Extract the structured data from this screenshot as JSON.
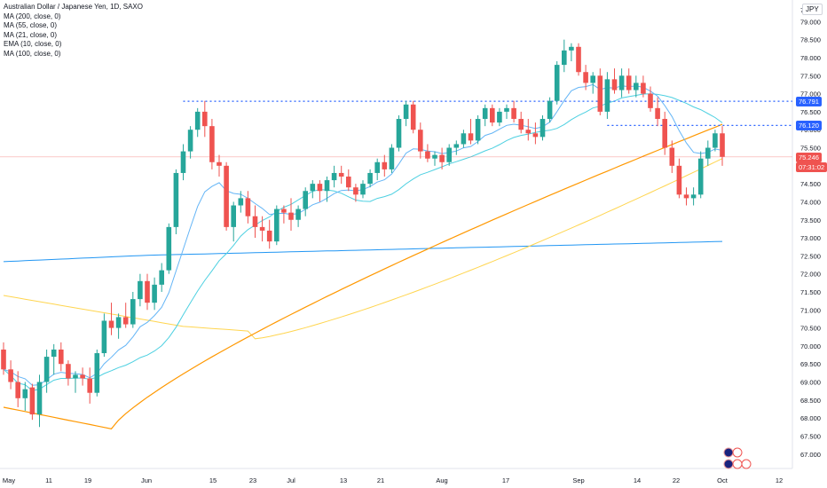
{
  "title": "Australian Dollar / Japanese Yen, 1D, SAXO",
  "indicators": [
    {
      "label": "MA (200, close, 0)",
      "color": "#2196f3"
    },
    {
      "label": "MA (55, close, 0)",
      "color": "#ff9800"
    },
    {
      "label": "MA (21, close, 0)",
      "color": "#ffd54f"
    },
    {
      "label": "EMA (10, close, 0)",
      "color": "#4dd0e1"
    },
    {
      "label": "MA (100, close, 0)",
      "color": "#64b5f6"
    }
  ],
  "currency": "JPY",
  "price_labels": {
    "resistance_1": "76.791",
    "resistance_2": "76.120",
    "last_price": "75.246",
    "countdown": "07:31:02"
  },
  "colors": {
    "up": "#26a69a",
    "down": "#ef5350",
    "level": "#2962ff"
  },
  "chart_data": {
    "type": "candlestick",
    "yaxis_ticks": [
      "67.000",
      "67.500",
      "68.000",
      "68.500",
      "69.000",
      "69.500",
      "70.000",
      "70.500",
      "71.000",
      "71.500",
      "72.000",
      "72.500",
      "73.000",
      "73.500",
      "74.000",
      "74.500",
      "75.000",
      "75.500",
      "76.000",
      "76.500",
      "77.000",
      "77.500",
      "78.000",
      "78.500",
      "79.000"
    ],
    "yaxis_top_partial": "7",
    "xaxis_ticks": [
      "May",
      "11",
      "19",
      "Jun",
      "15",
      "23",
      "Jul",
      "13",
      "21",
      "Aug",
      "17",
      "Sep",
      "14",
      "22",
      "Oct",
      "12"
    ],
    "ylim": [
      66.6,
      79.6
    ],
    "horizontal_levels": [
      76.791,
      76.12
    ],
    "last_price": 75.246,
    "candles": [
      [
        0,
        69.9,
        70.1,
        69.2,
        69.35
      ],
      [
        1,
        69.35,
        69.6,
        68.8,
        69.0
      ],
      [
        2,
        69.0,
        69.3,
        68.3,
        68.55
      ],
      [
        3,
        68.55,
        69.0,
        68.2,
        68.8
      ],
      [
        4,
        68.85,
        68.95,
        67.95,
        68.1
      ],
      [
        5,
        68.1,
        69.2,
        67.75,
        69.0
      ],
      [
        6,
        69.0,
        69.9,
        68.7,
        69.7
      ],
      [
        7,
        69.7,
        70.05,
        69.2,
        69.9
      ],
      [
        8,
        69.9,
        70.1,
        69.3,
        69.5
      ],
      [
        9,
        69.5,
        69.6,
        68.9,
        69.1
      ],
      [
        10,
        69.1,
        69.3,
        68.7,
        69.2
      ],
      [
        11,
        69.2,
        69.4,
        68.9,
        69.1
      ],
      [
        12,
        69.1,
        69.4,
        68.4,
        68.7
      ],
      [
        13,
        68.7,
        69.9,
        68.6,
        69.8
      ],
      [
        14,
        69.8,
        70.9,
        69.7,
        70.7
      ],
      [
        15,
        70.7,
        71.2,
        70.3,
        70.5
      ],
      [
        16,
        70.5,
        70.9,
        70.2,
        70.8
      ],
      [
        17,
        70.8,
        71.2,
        70.5,
        70.6
      ],
      [
        18,
        70.6,
        71.5,
        70.5,
        71.3
      ],
      [
        19,
        71.3,
        72.0,
        71.1,
        71.8
      ],
      [
        20,
        71.8,
        72.0,
        71.0,
        71.2
      ],
      [
        21,
        71.2,
        71.9,
        71.0,
        71.7
      ],
      [
        22,
        71.7,
        72.3,
        71.5,
        72.1
      ],
      [
        23,
        72.1,
        73.4,
        72.0,
        73.3
      ],
      [
        24,
        73.3,
        74.9,
        73.1,
        74.8
      ],
      [
        25,
        74.8,
        75.6,
        74.6,
        75.4
      ],
      [
        26,
        75.4,
        76.1,
        75.2,
        76.0
      ],
      [
        27,
        76.0,
        76.6,
        75.8,
        76.5
      ],
      [
        28,
        76.5,
        76.8,
        75.8,
        76.1
      ],
      [
        29,
        76.1,
        76.3,
        74.9,
        75.1
      ],
      [
        30,
        75.1,
        75.3,
        74.7,
        75.0
      ],
      [
        31,
        75.0,
        75.1,
        73.2,
        73.3
      ],
      [
        32,
        73.3,
        74.0,
        72.9,
        73.9
      ],
      [
        33,
        73.9,
        74.3,
        73.7,
        74.1
      ],
      [
        34,
        74.1,
        74.3,
        73.4,
        73.6
      ],
      [
        35,
        73.6,
        73.9,
        73.0,
        73.3
      ],
      [
        36,
        73.3,
        73.6,
        72.9,
        73.2
      ],
      [
        37,
        73.2,
        73.5,
        72.7,
        72.9
      ],
      [
        38,
        72.9,
        73.9,
        72.8,
        73.8
      ],
      [
        39,
        73.8,
        73.9,
        73.4,
        73.7
      ],
      [
        40,
        73.7,
        74.1,
        73.2,
        73.5
      ],
      [
        41,
        73.5,
        73.9,
        73.3,
        73.8
      ],
      [
        42,
        73.8,
        74.4,
        73.6,
        74.3
      ],
      [
        43,
        74.3,
        74.6,
        74.1,
        74.5
      ],
      [
        44,
        74.5,
        74.6,
        74.0,
        74.3
      ],
      [
        45,
        74.3,
        74.7,
        74.0,
        74.6
      ],
      [
        46,
        74.6,
        75.0,
        74.4,
        74.8
      ],
      [
        47,
        74.8,
        75.0,
        74.5,
        74.7
      ],
      [
        48,
        74.7,
        74.9,
        74.3,
        74.4
      ],
      [
        49,
        74.4,
        74.5,
        74.0,
        74.2
      ],
      [
        50,
        74.2,
        74.6,
        74.1,
        74.5
      ],
      [
        51,
        74.5,
        74.9,
        74.4,
        74.8
      ],
      [
        52,
        74.8,
        75.2,
        74.6,
        75.1
      ],
      [
        53,
        75.1,
        75.3,
        74.7,
        74.9
      ],
      [
        54,
        74.9,
        75.6,
        74.8,
        75.5
      ],
      [
        55,
        75.5,
        76.4,
        75.4,
        76.3
      ],
      [
        56,
        76.3,
        76.8,
        76.1,
        76.7
      ],
      [
        57,
        76.7,
        76.8,
        75.9,
        76.0
      ],
      [
        58,
        76.0,
        76.2,
        75.2,
        75.4
      ],
      [
        59,
        75.4,
        75.6,
        75.1,
        75.2
      ],
      [
        60,
        75.2,
        75.4,
        75.0,
        75.3
      ],
      [
        61,
        75.3,
        75.5,
        74.9,
        75.1
      ],
      [
        62,
        75.1,
        75.6,
        75.0,
        75.5
      ],
      [
        63,
        75.5,
        75.7,
        75.3,
        75.6
      ],
      [
        64,
        75.6,
        76.0,
        75.5,
        75.9
      ],
      [
        65,
        75.9,
        76.3,
        75.6,
        75.7
      ],
      [
        66,
        75.7,
        76.4,
        75.6,
        76.3
      ],
      [
        67,
        76.3,
        76.7,
        76.1,
        76.6
      ],
      [
        68,
        76.6,
        76.7,
        76.1,
        76.2
      ],
      [
        69,
        76.2,
        76.6,
        76.1,
        76.5
      ],
      [
        70,
        76.5,
        76.7,
        76.3,
        76.6
      ],
      [
        71,
        76.6,
        76.8,
        76.2,
        76.3
      ],
      [
        72,
        76.3,
        76.5,
        75.9,
        76.0
      ],
      [
        73,
        76.0,
        76.3,
        75.7,
        75.9
      ],
      [
        74,
        75.9,
        76.2,
        75.6,
        75.8
      ],
      [
        75,
        75.8,
        76.4,
        75.7,
        76.3
      ],
      [
        76,
        76.3,
        76.9,
        76.2,
        76.8
      ],
      [
        77,
        76.8,
        77.9,
        76.7,
        77.8
      ],
      [
        78,
        77.8,
        78.5,
        77.6,
        78.2
      ],
      [
        79,
        78.2,
        78.4,
        77.9,
        78.3
      ],
      [
        80,
        78.3,
        78.4,
        77.5,
        77.6
      ],
      [
        81,
        77.6,
        77.8,
        77.1,
        77.3
      ],
      [
        82,
        77.3,
        77.6,
        77.0,
        77.5
      ],
      [
        83,
        77.5,
        77.7,
        76.4,
        76.5
      ],
      [
        84,
        76.5,
        77.6,
        76.3,
        77.4
      ],
      [
        85,
        77.4,
        77.7,
        77.0,
        77.1
      ],
      [
        86,
        77.1,
        77.7,
        76.9,
        77.5
      ],
      [
        87,
        77.5,
        77.7,
        77.0,
        77.1
      ],
      [
        88,
        77.1,
        77.5,
        76.9,
        77.3
      ],
      [
        89,
        77.3,
        77.5,
        76.9,
        77.0
      ],
      [
        90,
        77.0,
        77.2,
        76.5,
        76.6
      ],
      [
        91,
        76.6,
        76.9,
        76.1,
        76.3
      ],
      [
        92,
        76.3,
        76.5,
        75.3,
        75.5
      ],
      [
        93,
        75.5,
        75.7,
        74.8,
        75.0
      ],
      [
        94,
        75.0,
        75.2,
        74.1,
        74.2
      ],
      [
        95,
        74.2,
        74.4,
        73.9,
        74.1
      ],
      [
        96,
        74.1,
        74.4,
        73.9,
        74.2
      ],
      [
        97,
        74.2,
        75.4,
        74.1,
        75.2
      ],
      [
        98,
        75.2,
        75.7,
        75.0,
        75.5
      ],
      [
        99,
        75.5,
        76.0,
        75.4,
        75.9
      ],
      [
        100,
        75.9,
        76.1,
        75.0,
        75.25
      ]
    ]
  }
}
